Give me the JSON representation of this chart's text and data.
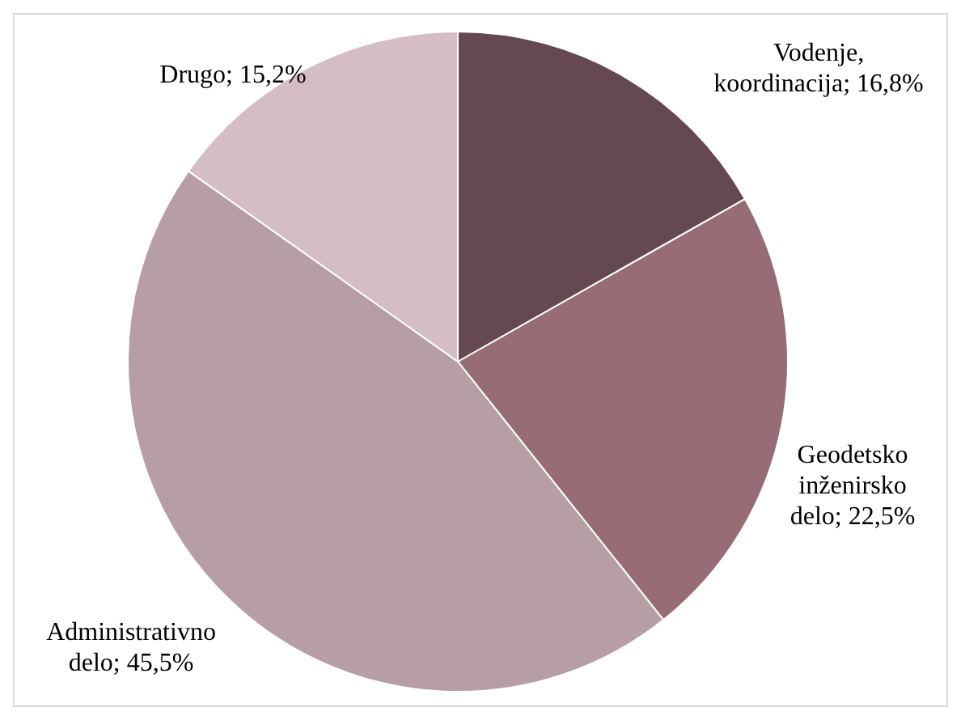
{
  "chart_data": {
    "type": "pie",
    "categories": [
      "Vodenje, koordinacija",
      "Geodetsko inženirsko delo",
      "Administrativno delo",
      "Drugo"
    ],
    "values": [
      16.8,
      22.5,
      45.5,
      15.2
    ],
    "value_labels": [
      "16,8%",
      "22,5%",
      "45,5%",
      "15,2%"
    ],
    "colors": [
      "#664852",
      "#976c76",
      "#b79ea4",
      "#d5bec3"
    ],
    "legend": false
  }
}
